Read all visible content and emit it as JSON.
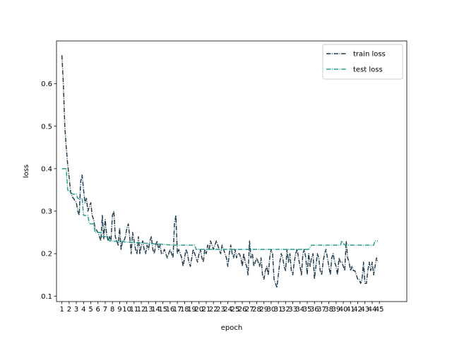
{
  "chart_data": {
    "type": "line",
    "xlabel": "epoch",
    "ylabel": "loss",
    "x_ticks": [
      1,
      2,
      3,
      4,
      5,
      6,
      7,
      8,
      9,
      10,
      11,
      12,
      13,
      14,
      15,
      16,
      17,
      18,
      19,
      20,
      21,
      22,
      23,
      24,
      25,
      26,
      27,
      28,
      29,
      30,
      31,
      32,
      33,
      34,
      35,
      36,
      37,
      38,
      39,
      40,
      41,
      42,
      43,
      44,
      45
    ],
    "xlim": [
      0.25,
      48.8
    ],
    "y_ticks": [
      0.1,
      0.2,
      0.3,
      0.4,
      0.5,
      0.6
    ],
    "ylim": [
      0.0872,
      0.7006
    ],
    "grid": false,
    "legend_position": "upper right",
    "series": [
      {
        "name": "train loss",
        "color": "#243f4f",
        "dash": "dashdot",
        "points": [
          [
            1.0,
            0.667
          ],
          [
            1.2,
            0.6
          ],
          [
            1.4,
            0.5
          ],
          [
            1.6,
            0.45
          ],
          [
            1.8,
            0.41
          ],
          [
            2.0,
            0.38
          ],
          [
            2.2,
            0.345
          ],
          [
            2.4,
            0.335
          ],
          [
            2.6,
            0.33
          ],
          [
            2.8,
            0.325
          ],
          [
            3.0,
            0.32
          ],
          [
            3.2,
            0.3
          ],
          [
            3.4,
            0.29
          ],
          [
            3.6,
            0.37
          ],
          [
            3.8,
            0.385
          ],
          [
            4.0,
            0.35
          ],
          [
            4.2,
            0.32
          ],
          [
            4.4,
            0.33
          ],
          [
            4.6,
            0.3
          ],
          [
            4.8,
            0.31
          ],
          [
            5.0,
            0.32
          ],
          [
            5.2,
            0.29
          ],
          [
            5.4,
            0.28
          ],
          [
            5.6,
            0.26
          ],
          [
            5.8,
            0.255
          ],
          [
            6.0,
            0.25
          ],
          [
            6.2,
            0.24
          ],
          [
            6.4,
            0.23
          ],
          [
            6.6,
            0.29
          ],
          [
            6.8,
            0.235
          ],
          [
            7.0,
            0.28
          ],
          [
            7.2,
            0.245
          ],
          [
            7.4,
            0.23
          ],
          [
            7.6,
            0.24
          ],
          [
            7.8,
            0.23
          ],
          [
            8.0,
            0.29
          ],
          [
            8.2,
            0.3
          ],
          [
            8.4,
            0.24
          ],
          [
            8.6,
            0.23
          ],
          [
            8.8,
            0.22
          ],
          [
            9.0,
            0.26
          ],
          [
            9.2,
            0.21
          ],
          [
            9.4,
            0.23
          ],
          [
            9.6,
            0.23
          ],
          [
            9.8,
            0.24
          ],
          [
            10.0,
            0.26
          ],
          [
            10.2,
            0.27
          ],
          [
            10.4,
            0.24
          ],
          [
            10.6,
            0.2
          ],
          [
            10.8,
            0.25
          ],
          [
            11.0,
            0.23
          ],
          [
            11.2,
            0.21
          ],
          [
            11.4,
            0.2
          ],
          [
            11.6,
            0.24
          ],
          [
            11.8,
            0.2
          ],
          [
            12.0,
            0.22
          ],
          [
            12.2,
            0.23
          ],
          [
            12.4,
            0.21
          ],
          [
            12.6,
            0.2
          ],
          [
            12.8,
            0.22
          ],
          [
            13.0,
            0.21
          ],
          [
            13.2,
            0.23
          ],
          [
            13.4,
            0.24
          ],
          [
            13.6,
            0.21
          ],
          [
            13.8,
            0.2
          ],
          [
            14.0,
            0.22
          ],
          [
            14.2,
            0.23
          ],
          [
            14.4,
            0.21
          ],
          [
            14.6,
            0.22
          ],
          [
            14.8,
            0.2
          ],
          [
            15.0,
            0.2
          ],
          [
            15.2,
            0.21
          ],
          [
            15.4,
            0.2
          ],
          [
            15.6,
            0.19
          ],
          [
            15.8,
            0.2
          ],
          [
            16.0,
            0.21
          ],
          [
            16.2,
            0.2
          ],
          [
            16.4,
            0.19
          ],
          [
            16.6,
            0.27
          ],
          [
            16.8,
            0.29
          ],
          [
            17.0,
            0.2
          ],
          [
            17.2,
            0.21
          ],
          [
            17.4,
            0.2
          ],
          [
            17.6,
            0.19
          ],
          [
            17.8,
            0.17
          ],
          [
            18.0,
            0.19
          ],
          [
            18.2,
            0.21
          ],
          [
            18.4,
            0.2
          ],
          [
            18.6,
            0.18
          ],
          [
            18.8,
            0.17
          ],
          [
            19.0,
            0.19
          ],
          [
            19.2,
            0.21
          ],
          [
            19.4,
            0.2
          ],
          [
            19.6,
            0.19
          ],
          [
            19.8,
            0.18
          ],
          [
            20.0,
            0.2
          ],
          [
            20.2,
            0.21
          ],
          [
            20.4,
            0.19
          ],
          [
            20.6,
            0.18
          ],
          [
            20.8,
            0.21
          ],
          [
            21.0,
            0.2
          ],
          [
            21.2,
            0.22
          ],
          [
            21.4,
            0.21
          ],
          [
            21.6,
            0.23
          ],
          [
            21.8,
            0.22
          ],
          [
            22.0,
            0.21
          ],
          [
            22.2,
            0.22
          ],
          [
            22.4,
            0.23
          ],
          [
            22.6,
            0.22
          ],
          [
            22.8,
            0.21
          ],
          [
            23.0,
            0.2
          ],
          [
            23.2,
            0.22
          ],
          [
            23.4,
            0.21
          ],
          [
            23.6,
            0.2
          ],
          [
            23.8,
            0.19
          ],
          [
            24.0,
            0.17
          ],
          [
            24.2,
            0.2
          ],
          [
            24.4,
            0.22
          ],
          [
            24.6,
            0.2
          ],
          [
            24.8,
            0.19
          ],
          [
            25.0,
            0.21
          ],
          [
            25.2,
            0.19
          ],
          [
            25.4,
            0.2
          ],
          [
            25.6,
            0.2
          ],
          [
            25.8,
            0.19
          ],
          [
            26.0,
            0.17
          ],
          [
            26.2,
            0.2
          ],
          [
            26.4,
            0.18
          ],
          [
            26.6,
            0.17
          ],
          [
            26.8,
            0.15
          ],
          [
            27.0,
            0.23
          ],
          [
            27.2,
            0.19
          ],
          [
            27.4,
            0.2
          ],
          [
            27.6,
            0.17
          ],
          [
            27.8,
            0.18
          ],
          [
            28.0,
            0.19
          ],
          [
            28.2,
            0.18
          ],
          [
            28.4,
            0.17
          ],
          [
            28.6,
            0.19
          ],
          [
            28.8,
            0.15
          ],
          [
            29.0,
            0.14
          ],
          [
            29.2,
            0.16
          ],
          [
            29.4,
            0.17
          ],
          [
            29.6,
            0.15
          ],
          [
            29.8,
            0.19
          ],
          [
            30.0,
            0.21
          ],
          [
            30.2,
            0.2
          ],
          [
            30.4,
            0.14
          ],
          [
            30.6,
            0.13
          ],
          [
            30.8,
            0.12
          ],
          [
            31.0,
            0.15
          ],
          [
            31.2,
            0.18
          ],
          [
            31.4,
            0.2
          ],
          [
            31.6,
            0.19
          ],
          [
            31.8,
            0.17
          ],
          [
            32.0,
            0.16
          ],
          [
            32.2,
            0.21
          ],
          [
            32.4,
            0.18
          ],
          [
            32.6,
            0.2
          ],
          [
            32.8,
            0.16
          ],
          [
            33.0,
            0.15
          ],
          [
            33.2,
            0.18
          ],
          [
            33.4,
            0.2
          ],
          [
            33.6,
            0.21
          ],
          [
            33.8,
            0.19
          ],
          [
            34.0,
            0.17
          ],
          [
            34.2,
            0.15
          ],
          [
            34.4,
            0.2
          ],
          [
            34.6,
            0.21
          ],
          [
            34.8,
            0.19
          ],
          [
            35.0,
            0.15
          ],
          [
            35.2,
            0.2
          ],
          [
            35.4,
            0.17
          ],
          [
            35.6,
            0.19
          ],
          [
            35.8,
            0.2
          ],
          [
            36.0,
            0.14
          ],
          [
            36.2,
            0.17
          ],
          [
            36.4,
            0.2
          ],
          [
            36.6,
            0.19
          ],
          [
            36.8,
            0.16
          ],
          [
            37.0,
            0.15
          ],
          [
            37.2,
            0.18
          ],
          [
            37.4,
            0.2
          ],
          [
            37.6,
            0.21
          ],
          [
            37.8,
            0.19
          ],
          [
            38.0,
            0.17
          ],
          [
            38.2,
            0.15
          ],
          [
            38.4,
            0.19
          ],
          [
            38.6,
            0.2
          ],
          [
            38.8,
            0.18
          ],
          [
            39.0,
            0.17
          ],
          [
            39.2,
            0.15
          ],
          [
            39.4,
            0.19
          ],
          [
            39.6,
            0.18
          ],
          [
            39.8,
            0.18
          ],
          [
            40.0,
            0.17
          ],
          [
            40.2,
            0.16
          ],
          [
            40.4,
            0.23
          ],
          [
            40.6,
            0.19
          ],
          [
            40.8,
            0.18
          ],
          [
            41.0,
            0.16
          ],
          [
            41.2,
            0.17
          ],
          [
            41.4,
            0.16
          ],
          [
            41.6,
            0.16
          ],
          [
            41.8,
            0.15
          ],
          [
            42.0,
            0.14
          ],
          [
            42.2,
            0.14
          ],
          [
            42.4,
            0.13
          ],
          [
            42.6,
            0.14
          ],
          [
            42.8,
            0.18
          ],
          [
            43.0,
            0.13
          ],
          [
            43.2,
            0.13
          ],
          [
            43.4,
            0.16
          ],
          [
            43.6,
            0.18
          ],
          [
            43.8,
            0.16
          ],
          [
            44.0,
            0.18
          ],
          [
            44.2,
            0.15
          ],
          [
            44.4,
            0.17
          ],
          [
            44.6,
            0.19
          ],
          [
            44.8,
            0.18
          ]
        ]
      },
      {
        "name": "test loss",
        "color": "#2a9d8f",
        "dash": "dashdot",
        "points": [
          [
            1.0,
            0.4
          ],
          [
            1.6,
            0.4
          ],
          [
            1.8,
            0.35
          ],
          [
            2.5,
            0.34
          ],
          [
            3.0,
            0.34
          ],
          [
            3.2,
            0.33
          ],
          [
            3.8,
            0.33
          ],
          [
            4.0,
            0.29
          ],
          [
            4.6,
            0.29
          ],
          [
            4.8,
            0.27
          ],
          [
            5.4,
            0.27
          ],
          [
            5.6,
            0.25
          ],
          [
            6.4,
            0.25
          ],
          [
            6.6,
            0.24
          ],
          [
            7.4,
            0.24
          ],
          [
            7.6,
            0.23
          ],
          [
            16.6,
            0.22
          ],
          [
            19.4,
            0.22
          ],
          [
            19.6,
            0.21
          ],
          [
            26.8,
            0.21
          ],
          [
            27.0,
            0.21
          ],
          [
            35.0,
            0.21
          ],
          [
            35.2,
            0.21
          ],
          [
            35.6,
            0.22
          ],
          [
            38.6,
            0.22
          ],
          [
            38.8,
            0.22
          ],
          [
            39.0,
            0.22
          ],
          [
            39.6,
            0.22
          ],
          [
            39.8,
            0.23
          ],
          [
            40.2,
            0.22
          ],
          [
            42.2,
            0.22
          ],
          [
            42.8,
            0.22
          ],
          [
            43.0,
            0.22
          ],
          [
            44.2,
            0.22
          ],
          [
            44.4,
            0.23
          ],
          [
            44.8,
            0.23
          ]
        ]
      }
    ]
  }
}
